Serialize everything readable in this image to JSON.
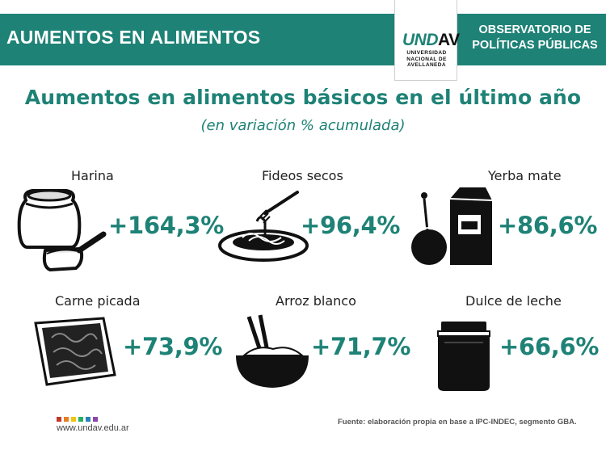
{
  "header": {
    "left_title": "AUMENTOS EN ALIMENTOS",
    "logo": {
      "mark_prefix": "UND",
      "mark_suffix": "AV",
      "caption_line1": "UNIVERSIDAD",
      "caption_line2": "NACIONAL DE",
      "caption_line3": "AVELLANEDA"
    },
    "right_title_line1": "OBSERVATORIO DE",
    "right_title_line2": "POLÍTICAS PÚBLICAS"
  },
  "main": {
    "title": "Aumentos en alimentos básicos en el último año",
    "subtitle": "(en variación % acumulada)"
  },
  "items": [
    {
      "label": "Harina",
      "value": "+164,3%",
      "percent": 164.3,
      "icon": "flour-icon"
    },
    {
      "label": "Fideos secos",
      "value": "+96,4%",
      "percent": 96.4,
      "icon": "pasta-icon"
    },
    {
      "label": "Yerba mate",
      "value": "+86,6%",
      "percent": 86.6,
      "icon": "yerba-mate-icon"
    },
    {
      "label": "Carne picada",
      "value": "+73,9%",
      "percent": 73.9,
      "icon": "ground-meat-icon"
    },
    {
      "label": "Arroz blanco",
      "value": "+71,7%",
      "percent": 71.7,
      "icon": "rice-bowl-icon"
    },
    {
      "label": "Dulce de leche",
      "value": "+66,6%",
      "percent": 66.6,
      "icon": "jar-icon"
    }
  ],
  "footer": {
    "website": "www.undav.edu.ar",
    "source": "Fuente: elaboración propia en base a IPC-INDEC, segmento GBA.",
    "dot_colors": [
      "#c0392b",
      "#e67e22",
      "#f1c40f",
      "#27ae60",
      "#2980b9",
      "#8e44ad"
    ]
  },
  "colors": {
    "accent": "#1e8276"
  }
}
